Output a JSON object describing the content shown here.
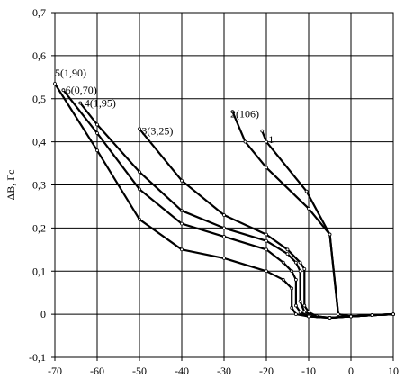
{
  "chart_data": {
    "type": "line",
    "title": "",
    "xlabel": "",
    "ylabel": "ΔB, Гс",
    "xlim": [
      -70,
      10
    ],
    "ylim": [
      -0.1,
      0.7
    ],
    "x_ticks": [
      "-70",
      "-60",
      "-50",
      "-40",
      "-30",
      "-20",
      "-10",
      "0",
      "10"
    ],
    "y_ticks": [
      "-0,1",
      "0",
      "0,1",
      "0,2",
      "0,3",
      "0,4",
      "0,5",
      "0,6",
      "0,7"
    ],
    "grid": true,
    "line_color": "#000000",
    "series": [
      {
        "name": "1",
        "label_at": [
          -19.5,
          0.405
        ],
        "x": [
          -21,
          -20,
          -10.5,
          -5,
          -3,
          0,
          5,
          10
        ],
        "y": [
          0.425,
          0.4,
          0.285,
          0.185,
          0.0,
          -0.005,
          -0.002,
          0.0
        ]
      },
      {
        "name": "2(106)",
        "label_at": [
          -28.5,
          0.465
        ],
        "x": [
          -28,
          -25,
          -20,
          -10,
          -5,
          -3,
          0,
          5,
          10
        ],
        "y": [
          0.47,
          0.4,
          0.34,
          0.245,
          0.185,
          0.0,
          -0.005,
          -0.002,
          0.0
        ]
      },
      {
        "name": "3(3,25)",
        "label_at": [
          -49.5,
          0.425
        ],
        "x": [
          -50,
          -40,
          -30,
          -20,
          -15,
          -12,
          -11,
          -11,
          -10,
          -8,
          -5,
          0,
          5,
          10
        ],
        "y": [
          0.43,
          0.31,
          0.23,
          0.185,
          0.15,
          0.12,
          0.105,
          0.02,
          0.005,
          -0.005,
          -0.008,
          -0.005,
          -0.002,
          0.0
        ]
      },
      {
        "name": "4(1,95)",
        "label_at": [
          -63,
          0.49
        ],
        "x": [
          -64,
          -60,
          -50,
          -40,
          -30,
          -20,
          -15,
          -13,
          -12,
          -12,
          -11,
          -8,
          -5,
          0,
          5,
          10
        ],
        "y": [
          0.49,
          0.44,
          0.33,
          0.24,
          0.2,
          0.17,
          0.14,
          0.12,
          0.1,
          0.03,
          0.005,
          -0.005,
          -0.008,
          -0.005,
          -0.002,
          0.0
        ]
      },
      {
        "name": "6(0,70)",
        "label_at": [
          -67.5,
          0.52
        ],
        "x": [
          -68,
          -60,
          -50,
          -40,
          -30,
          -20,
          -16,
          -14,
          -13,
          -13,
          -12,
          -10,
          -5,
          0,
          5,
          10
        ],
        "y": [
          0.52,
          0.42,
          0.29,
          0.21,
          0.18,
          0.15,
          0.12,
          0.1,
          0.08,
          0.02,
          0.005,
          -0.005,
          -0.008,
          -0.005,
          -0.002,
          0.0
        ]
      },
      {
        "name": "5(1,90)",
        "label_at": [
          -70,
          0.56
        ],
        "x": [
          -70,
          -60,
          -50,
          -40,
          -30,
          -20,
          -16,
          -14,
          -14,
          -13,
          -10,
          -5,
          0,
          5,
          10
        ],
        "y": [
          0.535,
          0.38,
          0.22,
          0.15,
          0.13,
          0.1,
          0.08,
          0.06,
          0.015,
          0.0,
          -0.005,
          -0.008,
          -0.005,
          -0.002,
          0.0
        ]
      }
    ]
  }
}
